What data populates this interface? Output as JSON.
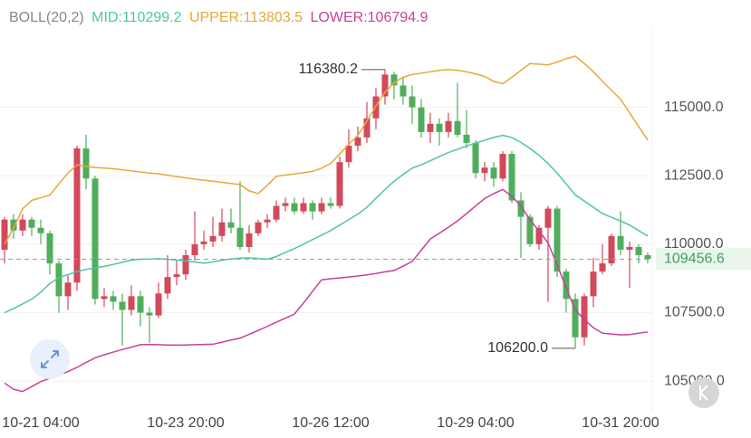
{
  "chart_data": {
    "type": "candlestick",
    "indicator": "BOLL(20,2)",
    "categories": [
      null,
      null,
      null,
      null,
      "10-21 04:00",
      null,
      null,
      null,
      null,
      null,
      null,
      null,
      null,
      null,
      null,
      null,
      null,
      null,
      null,
      null,
      "10-23 20:00",
      null,
      null,
      null,
      null,
      null,
      null,
      null,
      null,
      null,
      null,
      null,
      null,
      null,
      null,
      null,
      "10-26 12:00",
      null,
      null,
      null,
      null,
      null,
      null,
      null,
      null,
      null,
      null,
      null,
      null,
      null,
      null,
      null,
      "10-29 04:00",
      null,
      null,
      null,
      null,
      null,
      null,
      null,
      null,
      null,
      null,
      null,
      null,
      null,
      null,
      null,
      "10-31 20:00",
      null,
      null,
      null
    ],
    "open": [
      109800,
      110900,
      110500,
      110900,
      110600,
      110400,
      109300,
      108100,
      108600,
      113500,
      112400,
      108000,
      108100,
      107900,
      107600,
      108100,
      107500,
      107400,
      108200,
      108800,
      108900,
      109600,
      110000,
      110100,
      110300,
      110800,
      110600,
      109900,
      110400,
      110800,
      110900,
      111400,
      111500,
      111200,
      111500,
      111200,
      111500,
      111400,
      113000,
      113600,
      113900,
      114600,
      115400,
      116200,
      115800,
      115400,
      115000,
      114100,
      114400,
      114100,
      114500,
      114000,
      113700,
      112600,
      112800,
      112400,
      113300,
      111600,
      111000,
      110000,
      110600,
      111300,
      109000,
      108000,
      106600,
      108100,
      109000,
      109300,
      110300,
      109800,
      109900,
      109600
    ],
    "high": [
      111000,
      111100,
      111100,
      111000,
      110900,
      110500,
      109400,
      108900,
      113600,
      114000,
      112500,
      108400,
      108300,
      108200,
      108500,
      108300,
      107700,
      108600,
      109600,
      109400,
      109800,
      111200,
      110500,
      111000,
      111300,
      111300,
      112300,
      110700,
      110900,
      111100,
      111600,
      111700,
      111700,
      111700,
      111600,
      111700,
      111700,
      113200,
      114200,
      114300,
      115200,
      115700,
      116380.2,
      116300,
      116100,
      115800,
      115300,
      114800,
      114600,
      114800,
      115900,
      114900,
      113800,
      113000,
      113000,
      113400,
      113400,
      111900,
      111100,
      110700,
      111400,
      111400,
      109100,
      108200,
      108200,
      109500,
      110000,
      110400,
      111200,
      110100,
      110000,
      109700
    ],
    "low": [
      109300,
      110200,
      110300,
      110300,
      110000,
      108900,
      107500,
      107600,
      108300,
      112000,
      107800,
      107700,
      107600,
      106300,
      107400,
      107000,
      106400,
      107300,
      108000,
      108500,
      108700,
      109400,
      109800,
      109900,
      110100,
      110400,
      109800,
      109700,
      110300,
      110600,
      110800,
      111200,
      111100,
      111100,
      110900,
      111100,
      111300,
      111300,
      112800,
      113400,
      113700,
      114200,
      115100,
      115300,
      115100,
      114400,
      113900,
      113700,
      113600,
      113900,
      113900,
      113500,
      112400,
      112300,
      112100,
      112300,
      111500,
      109500,
      109900,
      109800,
      107900,
      108800,
      107500,
      106200,
      106300,
      107700,
      108900,
      109200,
      109600,
      108400,
      109300,
      109300
    ],
    "close": [
      110900,
      110500,
      110900,
      110600,
      110400,
      109300,
      108100,
      108600,
      113500,
      112400,
      108000,
      108100,
      107900,
      107600,
      108100,
      107500,
      107400,
      108200,
      108800,
      108900,
      109600,
      110000,
      110100,
      110300,
      110800,
      110600,
      109900,
      110400,
      110800,
      110900,
      111400,
      111500,
      111200,
      111500,
      111200,
      111500,
      111400,
      113000,
      113600,
      113900,
      114600,
      115400,
      116200,
      115800,
      115400,
      115000,
      114100,
      114400,
      114100,
      114500,
      114000,
      113700,
      112600,
      112800,
      112400,
      113300,
      111600,
      111000,
      110000,
      110600,
      111300,
      109000,
      108000,
      106600,
      108100,
      109000,
      109300,
      110300,
      109800,
      109900,
      109600,
      109456.6
    ],
    "up_color": "#d2495b",
    "down_color": "#4fae5c",
    "series": [
      {
        "name": "MID:110299.2",
        "color": "#4fc4a8",
        "values": [
          107500,
          107650,
          107820,
          107990,
          108250,
          108560,
          108780,
          108890,
          109000,
          109080,
          109130,
          109190,
          109260,
          109340,
          109420,
          109450,
          109460,
          109470,
          109450,
          109420,
          109390,
          109350,
          109310,
          109350,
          109420,
          109460,
          109490,
          109500,
          109480,
          109450,
          109550,
          109700,
          109840,
          110000,
          110170,
          110330,
          110500,
          110700,
          110900,
          111100,
          111350,
          111680,
          112000,
          112300,
          112550,
          112780,
          112900,
          113050,
          113200,
          113350,
          113470,
          113590,
          113690,
          113800,
          113900,
          113980,
          113900,
          113720,
          113500,
          113250,
          112950,
          112600,
          112200,
          111800,
          111580,
          111350,
          111120,
          110980,
          110850,
          110700,
          110500,
          110299.2
        ]
      },
      {
        "name": "UPPER:113803.5",
        "color": "#e6a935",
        "values": [
          110000,
          110600,
          111300,
          111600,
          111700,
          111800,
          112200,
          112600,
          112900,
          112850,
          112800,
          112780,
          112760,
          112720,
          112680,
          112640,
          112600,
          112570,
          112520,
          112470,
          112420,
          112380,
          112340,
          112300,
          112260,
          112220,
          112180,
          111950,
          111850,
          112150,
          112480,
          112530,
          112570,
          112610,
          112660,
          112780,
          112950,
          113300,
          113650,
          113980,
          114500,
          115050,
          115550,
          115900,
          116100,
          116200,
          116250,
          116300,
          116350,
          116380,
          116350,
          116300,
          116220,
          116130,
          115950,
          115860,
          116100,
          116350,
          116600,
          116580,
          116550,
          116650,
          116780,
          116870,
          116600,
          116300,
          115950,
          115620,
          115300,
          114800,
          114300,
          113803.5
        ]
      },
      {
        "name": "LOWER:106794.9",
        "color": "#c9409a",
        "values": [
          104930,
          104700,
          104620,
          104800,
          104980,
          105100,
          105220,
          105350,
          105500,
          105680,
          105850,
          105960,
          106060,
          106150,
          106240,
          106330,
          106340,
          106330,
          106320,
          106315,
          106320,
          106330,
          106340,
          106345,
          106420,
          106500,
          106570,
          106710,
          106850,
          107000,
          107150,
          107300,
          107450,
          107850,
          108280,
          108700,
          108740,
          108770,
          108800,
          108840,
          108880,
          108930,
          108990,
          109040,
          109200,
          109370,
          109780,
          110190,
          110400,
          110620,
          110850,
          111120,
          111400,
          111670,
          111850,
          112000,
          111750,
          111400,
          110900,
          110480,
          110050,
          109250,
          108400,
          107600,
          107250,
          106950,
          106750,
          106720,
          106690,
          106700,
          106750,
          106794.9
        ]
      }
    ],
    "annotations": [
      {
        "value": 116380.2,
        "label": "116380.2"
      },
      {
        "value": 106200,
        "label": "106200.0"
      }
    ],
    "last_price": {
      "value": 109456.6,
      "label": "109456.6"
    },
    "ylim": [
      103880,
      117930
    ],
    "yticks": [
      {
        "value": 105000,
        "label": "105000.0"
      },
      {
        "value": 107500,
        "label": "107500.0"
      },
      {
        "value": 110000,
        "label": "110000.0"
      },
      {
        "value": 112500,
        "label": "112500.0"
      },
      {
        "value": 115000,
        "label": "115000.0"
      }
    ],
    "grid": true
  }
}
